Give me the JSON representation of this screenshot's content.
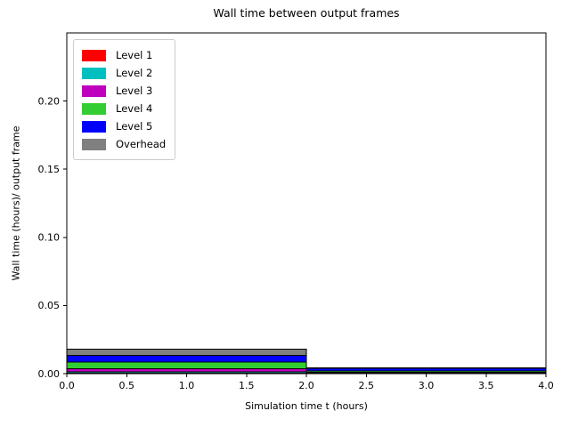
{
  "chart_data": {
    "type": "bar",
    "stacked": true,
    "title": "Wall time between output frames",
    "xlabel": "Simulation time t (hours)",
    "ylabel": "Wall time (hours)/ output frame",
    "xlim": [
      0.0,
      4.0
    ],
    "ylim": [
      0.0,
      0.25
    ],
    "grid": false,
    "legend_position": "upper-left",
    "bar_edge_color": "#000000",
    "xticks": [
      0.0,
      0.5,
      1.0,
      1.5,
      2.0,
      2.5,
      3.0,
      3.5,
      4.0
    ],
    "xtick_labels": [
      "0.0",
      "0.5",
      "1.0",
      "1.5",
      "2.0",
      "2.5",
      "3.0",
      "3.5",
      "4.0"
    ],
    "yticks": [
      0.0,
      0.05,
      0.1,
      0.15,
      0.2
    ],
    "ytick_labels": [
      "0.00",
      "0.05",
      "0.10",
      "0.15",
      "0.20"
    ],
    "segments": [
      {
        "x_start": 0.0,
        "x_end": 2.0
      },
      {
        "x_start": 2.0,
        "x_end": 4.0
      }
    ],
    "series": [
      {
        "name": "Level 1",
        "color": "#ff0000",
        "values": [
          0.0004,
          0.0002
        ]
      },
      {
        "name": "Level 2",
        "color": "#00bfbf",
        "values": [
          0.001,
          0.0004
        ]
      },
      {
        "name": "Level 3",
        "color": "#bf00bf",
        "values": [
          0.0022,
          0.0005
        ]
      },
      {
        "name": "Level 4",
        "color": "#32cd32",
        "values": [
          0.0048,
          0.0007
        ]
      },
      {
        "name": "Level 5",
        "color": "#0000ff",
        "values": [
          0.005,
          0.002
        ]
      },
      {
        "name": "Overhead",
        "color": "#808080",
        "values": [
          0.0045,
          0.0004
        ]
      }
    ],
    "stack_totals": [
      0.0179,
      0.0042
    ]
  }
}
